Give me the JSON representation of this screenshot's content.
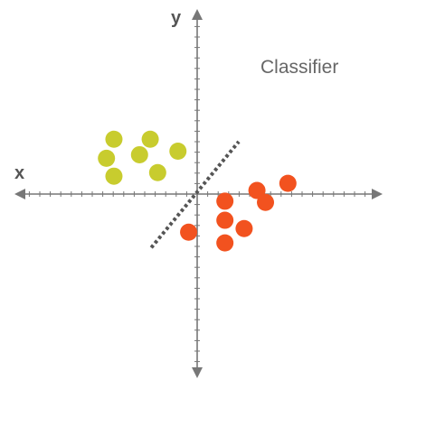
{
  "diagram": {
    "axis_x_label": "x",
    "axis_y_label": "y",
    "classifier_label": "Classifier",
    "colors": {
      "axis": "#777777",
      "class_a": "#c8cc2e",
      "class_b": "#f2521f",
      "classifier_line": "#555555",
      "text": "#555555"
    },
    "icons": [
      "x-axis-arrow-icon",
      "y-axis-arrow-icon"
    ]
  },
  "chart_data": {
    "type": "scatter",
    "series": [
      {
        "color": "#c8cc2e",
        "points": [
          [
            -7.8,
            4.6
          ],
          [
            -4.4,
            4.6
          ],
          [
            -8.5,
            3.0
          ],
          [
            -5.4,
            3.3
          ],
          [
            -1.8,
            3.6
          ],
          [
            -7.8,
            1.5
          ],
          [
            -3.7,
            1.8
          ]
        ]
      },
      {
        "color": "#f2521f",
        "points": [
          [
            8.5,
            0.9
          ],
          [
            5.6,
            0.3
          ],
          [
            2.6,
            -0.6
          ],
          [
            6.4,
            -0.7
          ],
          [
            2.6,
            -2.2
          ],
          [
            4.4,
            -2.9
          ],
          [
            -0.8,
            -3.2
          ],
          [
            2.6,
            -4.1
          ]
        ]
      }
    ],
    "classifier": [
      [
        -4.3,
        -4.5
      ],
      [
        3.9,
        4.4
      ]
    ],
    "xlim": [
      -11.5,
      11.5
    ],
    "ylim": [
      -5.5,
      5.5
    ]
  }
}
